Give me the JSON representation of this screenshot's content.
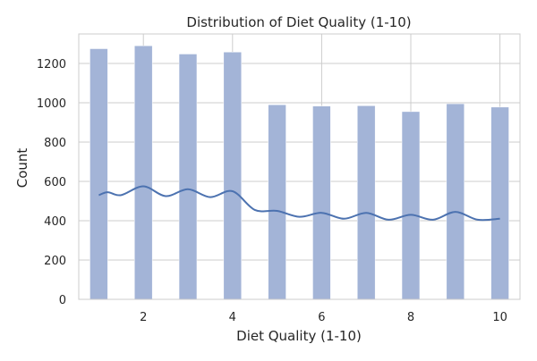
{
  "chart_data": {
    "type": "bar",
    "title": "Distribution of Diet Quality (1-10)",
    "xlabel": "Diet Quality (1-10)",
    "ylabel": "Count",
    "xlim": [
      0.55,
      10.45
    ],
    "ylim": [
      0,
      1350
    ],
    "xticks": [
      "2",
      "4",
      "6",
      "8",
      "10"
    ],
    "yticks": [
      "0",
      "200",
      "400",
      "600",
      "800",
      "1000",
      "1200"
    ],
    "grid": true,
    "bar_color": "#a3b4d7",
    "kde_color": "#4c72b0",
    "bins": [
      {
        "x": 1,
        "value": 1275
      },
      {
        "x": 2,
        "value": 1290
      },
      {
        "x": 3,
        "value": 1248
      },
      {
        "x": 4,
        "value": 1258
      },
      {
        "x": 5,
        "value": 990
      },
      {
        "x": 6,
        "value": 983
      },
      {
        "x": 7,
        "value": 985
      },
      {
        "x": 8,
        "value": 955
      },
      {
        "x": 9,
        "value": 995
      },
      {
        "x": 10,
        "value": 978
      }
    ],
    "kde": {
      "x": [
        1,
        1.2,
        1.5,
        2,
        2.5,
        3,
        3.5,
        4,
        4.5,
        5,
        5.5,
        6,
        6.5,
        7,
        7.5,
        8,
        8.5,
        9,
        9.5,
        10
      ],
      "y": [
        530,
        545,
        530,
        575,
        525,
        560,
        520,
        550,
        455,
        450,
        420,
        440,
        410,
        440,
        405,
        430,
        405,
        445,
        405,
        410
      ]
    }
  }
}
